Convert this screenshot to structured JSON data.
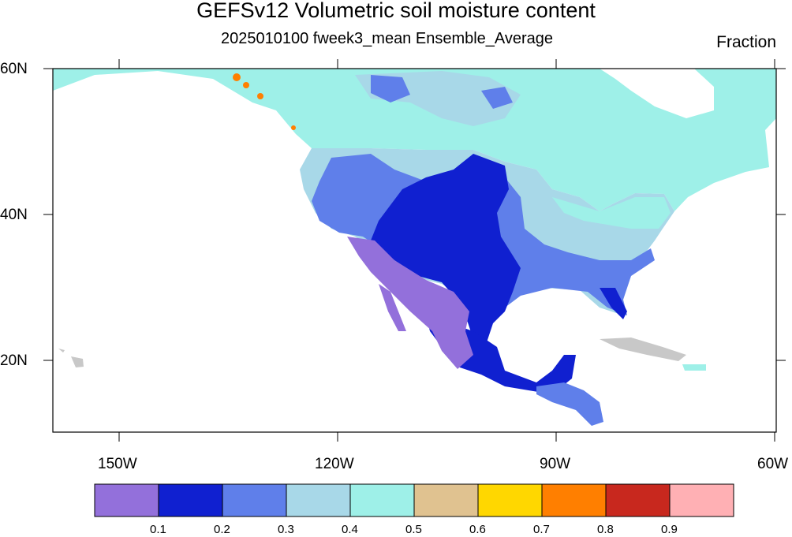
{
  "title": "GEFSv12 Volumetric soil moisture content",
  "subtitle": "2025010100 fweek3_mean Ensemble_Average",
  "units": "Fraction",
  "lat_labels": [
    "60N",
    "40N",
    "20N"
  ],
  "lon_labels": [
    "150W",
    "120W",
    "90W",
    "60W"
  ],
  "colorbar": {
    "colors": [
      "#9370DB",
      "#1020D0",
      "#5F7FEA",
      "#A8D8E8",
      "#9EF0E8",
      "#E0C290",
      "#FFD700",
      "#FF7F00",
      "#C8281E",
      "#FFB0B4"
    ],
    "tick_labels": [
      "0.1",
      "0.2",
      "0.3",
      "0.4",
      "0.5",
      "0.6",
      "0.7",
      "0.8",
      "0.9"
    ]
  },
  "colors": {
    "land_missing": "#C8C8C8",
    "border": "#000000"
  }
}
